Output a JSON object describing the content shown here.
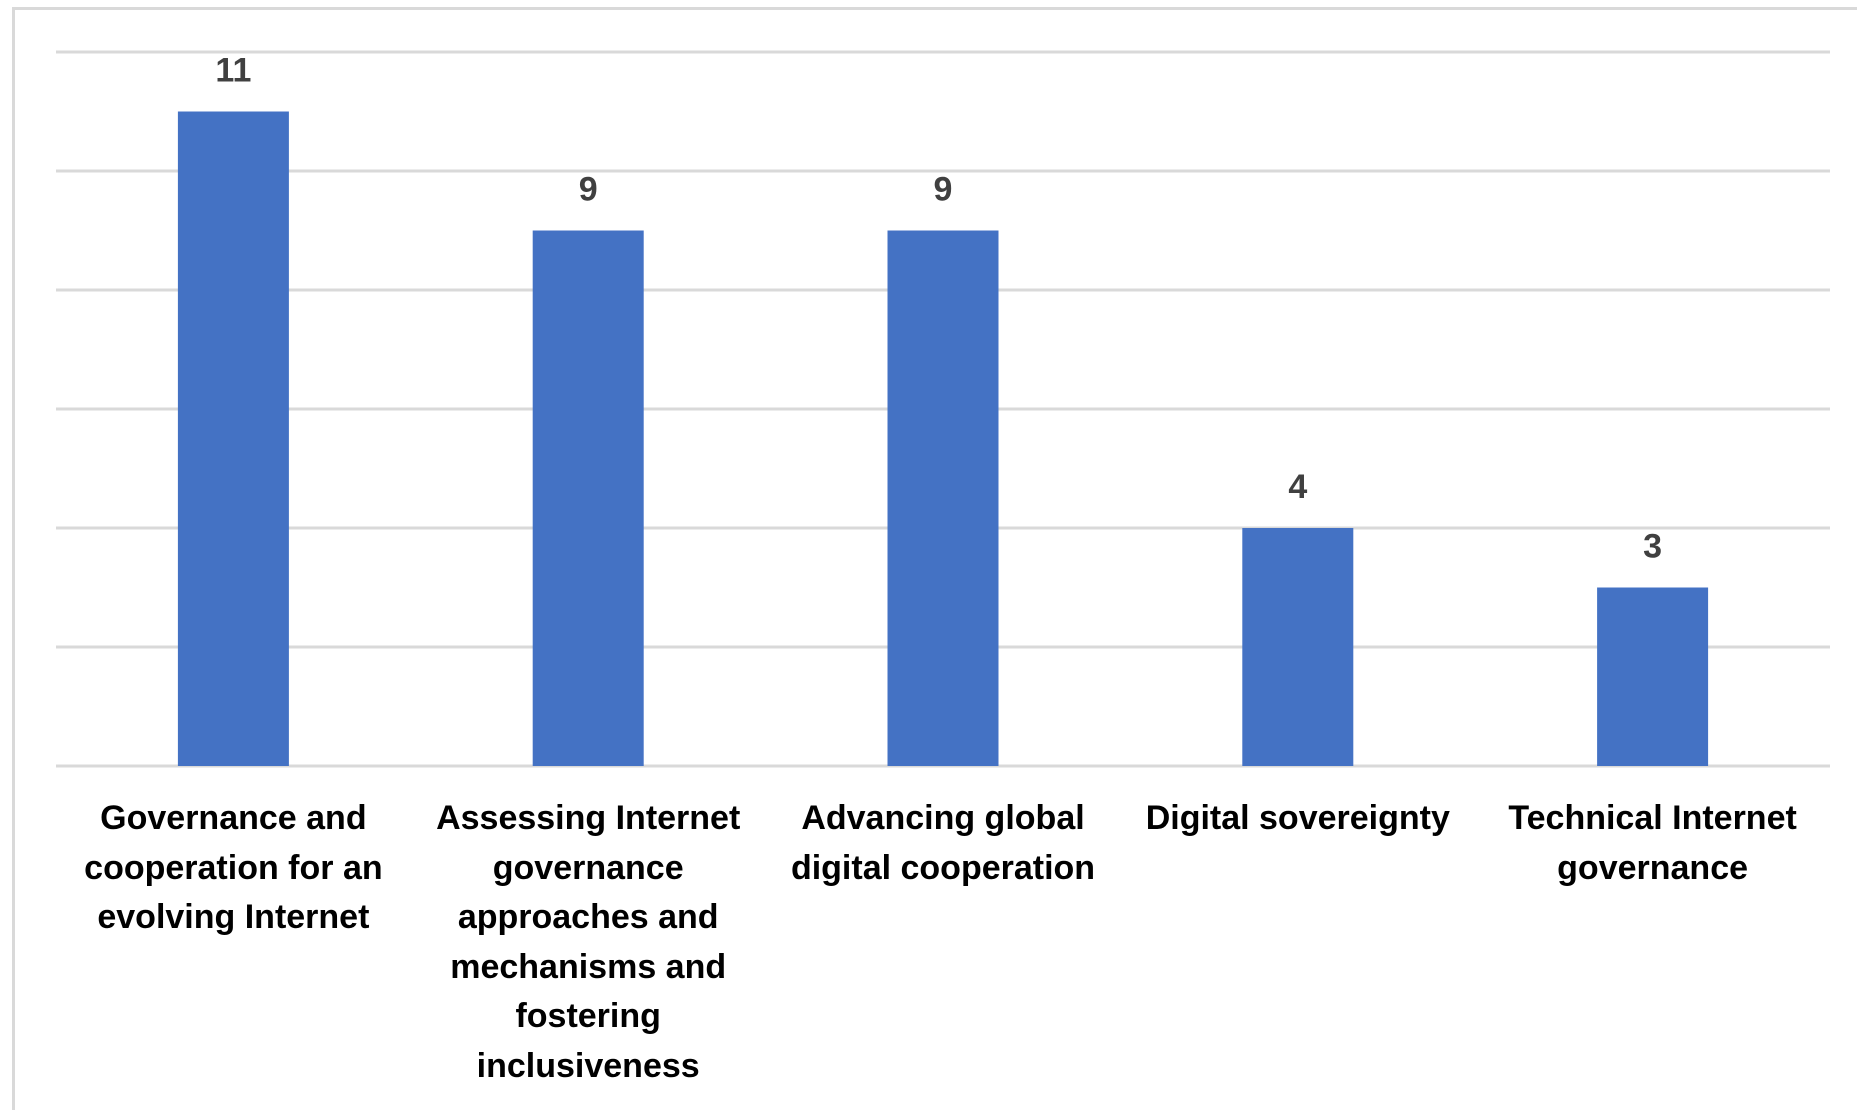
{
  "chart_data": {
    "type": "bar",
    "categories": [
      "Governance and cooperation for an evolving Internet",
      "Assessing Internet governance approaches and mechanisms and fostering inclusiveness",
      "Advancing global digital cooperation",
      "Digital sovereignty",
      "Technical Internet governance"
    ],
    "values": [
      11,
      9,
      9,
      4,
      3
    ],
    "data_labels": [
      "11",
      "9",
      "9",
      "4",
      "3"
    ],
    "ylim": [
      0,
      12
    ],
    "grid": true,
    "legend": "none",
    "bar_color": "#4472c4"
  }
}
